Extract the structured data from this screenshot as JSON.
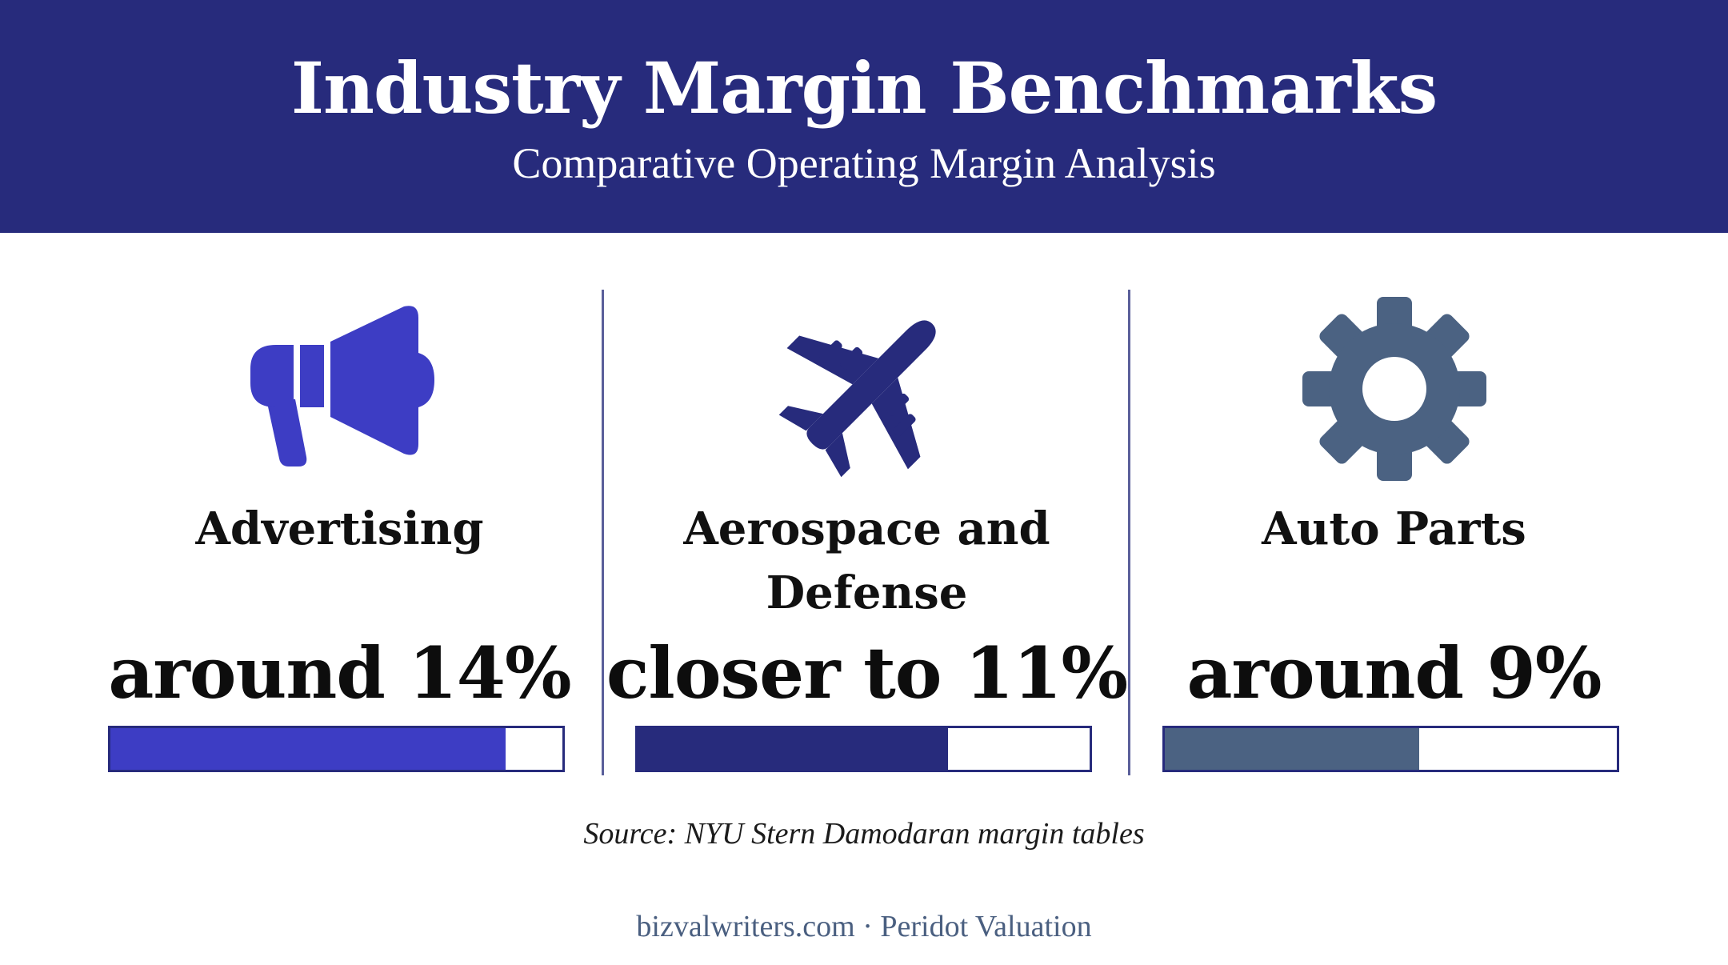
{
  "header": {
    "title": "Industry Margin Benchmarks",
    "subtitle": "Comparative Operating Margin Analysis"
  },
  "colors": {
    "header_bg": "#272b7c",
    "advertising": "#3d3dc4",
    "aerospace": "#272b7c",
    "auto_parts": "#4b6282"
  },
  "chart_data": {
    "type": "bar",
    "categories": [
      "Advertising",
      "Aerospace and Defense",
      "Auto Parts"
    ],
    "series": [
      {
        "values": [
          14,
          11,
          9
        ]
      }
    ],
    "value_labels": [
      "around 14%",
      "closer to 11%",
      "around 9%"
    ],
    "icons": [
      "megaphone-icon",
      "airplane-icon",
      "gear-icon"
    ]
  },
  "source": "Source: NYU Stern Damodaran margin tables",
  "footer": "bizvalwriters.com · Peridot Valuation"
}
